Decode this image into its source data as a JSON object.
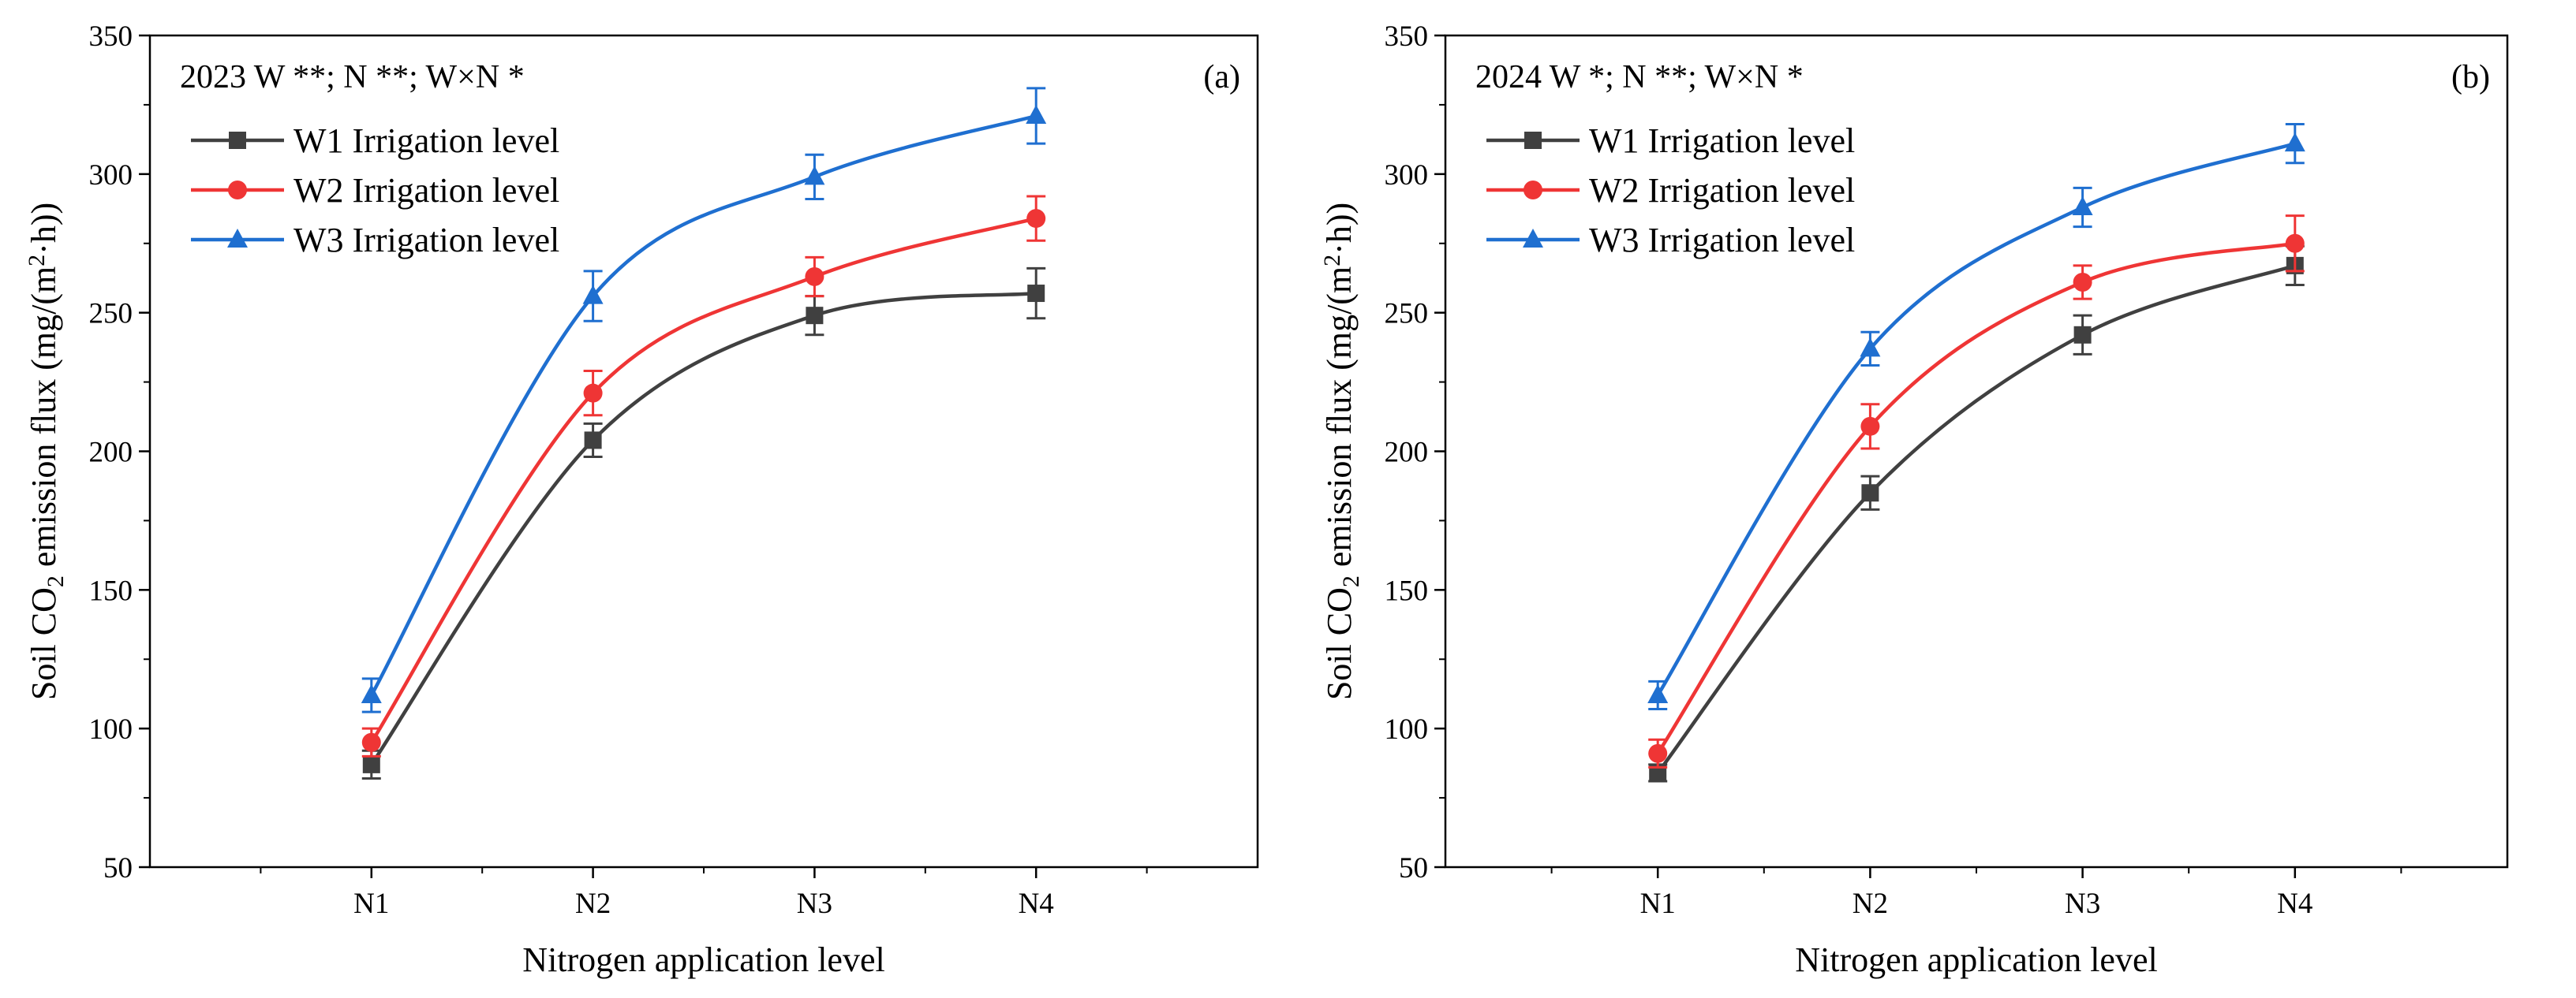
{
  "chart_data": [
    {
      "type": "line",
      "panel_label": "(a)",
      "annotation": "2023  W **; N **; W×N *",
      "xlabel": "Nitrogen application level",
      "ylabel_parts": [
        "Soil CO",
        "2",
        " emission flux (mg/(m",
        "2",
        "·h))"
      ],
      "categories": [
        "N1",
        "N2",
        "N3",
        "N4"
      ],
      "ylim": [
        50,
        350
      ],
      "yticks": [
        50,
        100,
        150,
        200,
        250,
        300,
        350
      ],
      "legend_position": "top-left",
      "series": [
        {
          "name": "W1 Irrigation level",
          "color": "#404040",
          "marker": "square",
          "values": [
            87,
            204,
            249,
            257
          ],
          "errors": [
            5,
            6,
            7,
            9
          ]
        },
        {
          "name": "W2 Irrigation level",
          "color": "#ef3535",
          "marker": "circle",
          "values": [
            95,
            221,
            263,
            284
          ],
          "errors": [
            5,
            8,
            7,
            8
          ]
        },
        {
          "name": "W3 Irrigation level",
          "color": "#1f6fd0",
          "marker": "triangle",
          "values": [
            112,
            256,
            299,
            321
          ],
          "errors": [
            6,
            9,
            8,
            10
          ]
        }
      ]
    },
    {
      "type": "line",
      "panel_label": "(b)",
      "annotation": "2024  W *; N **; W×N *",
      "xlabel": "Nitrogen application level",
      "ylabel_parts": [
        "Soil CO",
        "2",
        " emission flux (mg/(m",
        "2",
        "·h))"
      ],
      "categories": [
        "N1",
        "N2",
        "N3",
        "N4"
      ],
      "ylim": [
        50,
        350
      ],
      "yticks": [
        50,
        100,
        150,
        200,
        250,
        300,
        350
      ],
      "legend_position": "top-left",
      "series": [
        {
          "name": "W1 Irrigation level",
          "color": "#404040",
          "marker": "square",
          "values": [
            84,
            185,
            242,
            267
          ],
          "errors": [
            3,
            6,
            7,
            7
          ]
        },
        {
          "name": "W2 Irrigation level",
          "color": "#ef3535",
          "marker": "circle",
          "values": [
            91,
            209,
            261,
            275
          ],
          "errors": [
            5,
            8,
            6,
            10
          ]
        },
        {
          "name": "W3 Irrigation level",
          "color": "#1f6fd0",
          "marker": "triangle",
          "values": [
            112,
            237,
            288,
            311
          ],
          "errors": [
            5,
            6,
            7,
            7
          ]
        }
      ]
    }
  ]
}
